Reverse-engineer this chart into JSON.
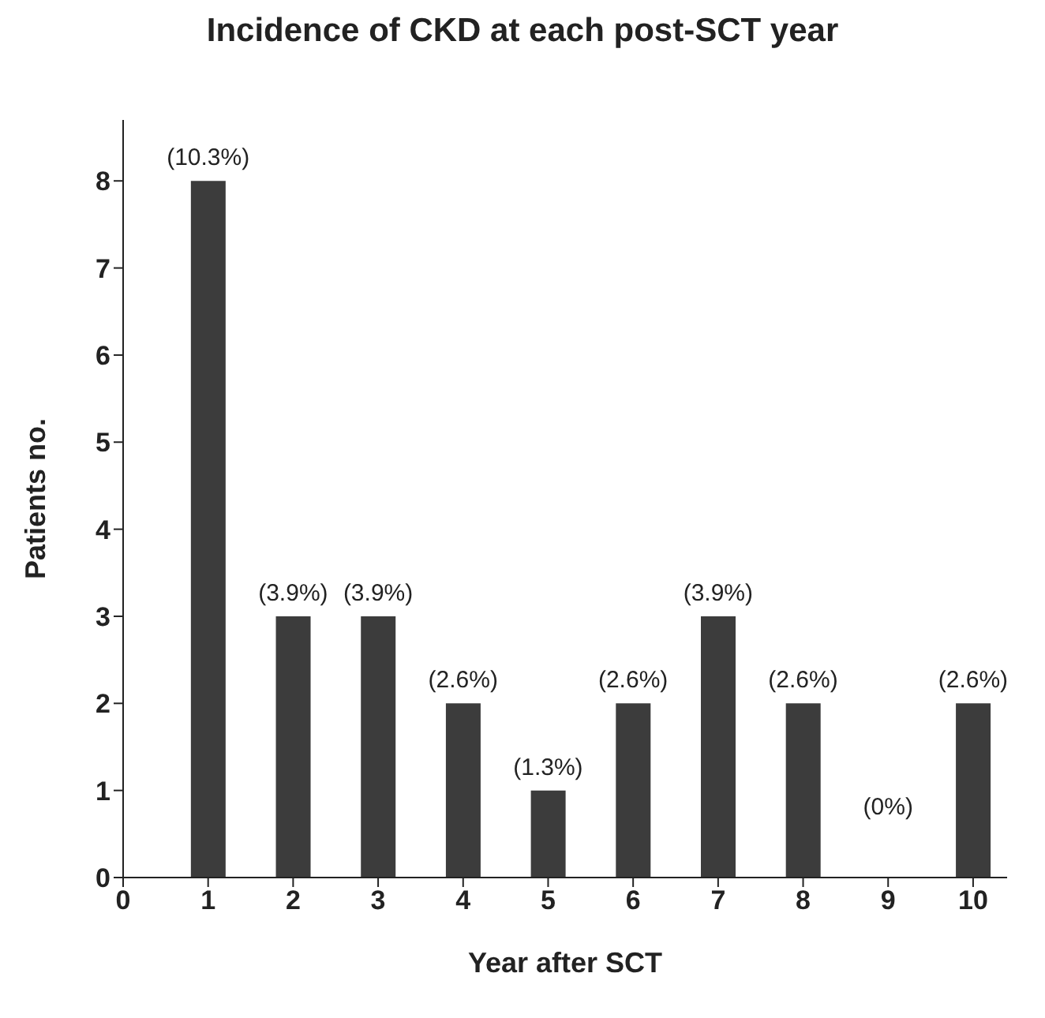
{
  "chart_data": {
    "type": "bar",
    "title": "Incidence of CKD at each post-SCT year",
    "xlabel": "Year after SCT",
    "ylabel": "Patients no.",
    "x": [
      1,
      2,
      3,
      4,
      5,
      6,
      7,
      8,
      9,
      10
    ],
    "values": [
      8,
      3,
      3,
      2,
      1,
      2,
      3,
      2,
      0,
      2
    ],
    "annotations": [
      {
        "text": "(10.3%)",
        "x": 1,
        "y": 8
      },
      {
        "text": "(3.9%)",
        "x": 2,
        "y": 3
      },
      {
        "text": "(3.9%)",
        "x": 3,
        "y": 3
      },
      {
        "text": "(2.6%)",
        "x": 4,
        "y": 2
      },
      {
        "text": "(1.3%)",
        "x": 5,
        "y": 1
      },
      {
        "text": "(2.6%)",
        "x": 6,
        "y": 2
      },
      {
        "text": "(3.9%)",
        "x": 7,
        "y": 3
      },
      {
        "text": "(2.6%)",
        "x": 8,
        "y": 2
      },
      {
        "text": "(0%)",
        "x": 9,
        "y": 0
      },
      {
        "text": "(2.6%)",
        "x": 10,
        "y": 2
      }
    ],
    "color": "#3c3c3c",
    "xlim": [
      0,
      10.4
    ],
    "xticks": [
      0,
      1,
      2,
      3,
      4,
      5,
      6,
      7,
      8,
      9,
      10
    ],
    "ylim": [
      0,
      8.7
    ],
    "yticks": [
      0,
      1,
      2,
      3,
      4,
      5,
      6,
      7,
      8
    ],
    "grid": false
  }
}
